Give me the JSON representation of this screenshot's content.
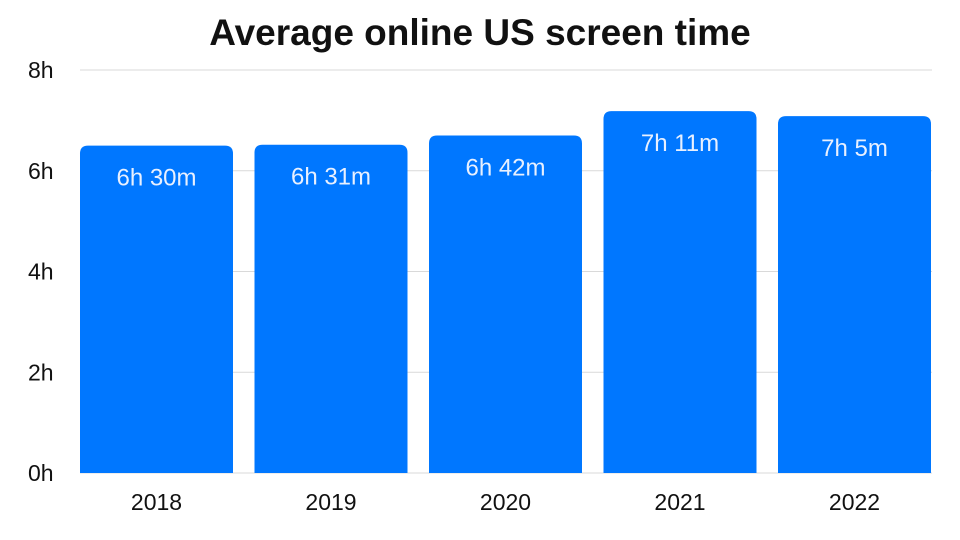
{
  "chart_data": {
    "type": "bar",
    "title": "Average online US screen time",
    "categories": [
      "2018",
      "2019",
      "2020",
      "2021",
      "2022"
    ],
    "values": [
      6.5,
      6.5167,
      6.7,
      7.1833,
      7.0833
    ],
    "data_labels": [
      "6h 30m",
      "6h 31m",
      "6h 42m",
      "7h 11m",
      "7h 5m"
    ],
    "y_ticks": [
      0,
      2,
      4,
      6,
      8
    ],
    "y_tick_labels": [
      "0h",
      "2h",
      "4h",
      "6h",
      "8h"
    ],
    "ylim": [
      0,
      8
    ],
    "grid": true,
    "bar_color": "#0077ff",
    "grid_color": "#d9d9d9"
  }
}
